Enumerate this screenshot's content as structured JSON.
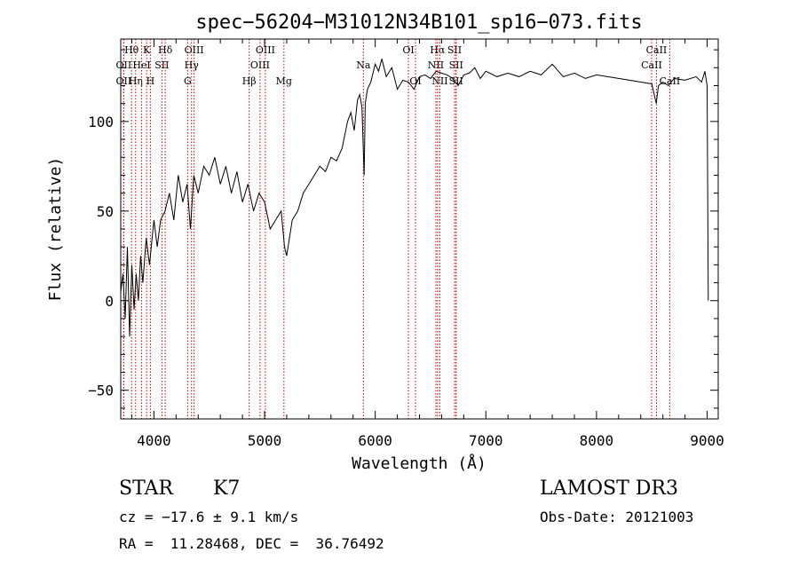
{
  "chart_data": {
    "type": "line",
    "title": "spec−56204−M31012N34B101_sp16−073.fits",
    "xlabel": "Wavelength (Å)",
    "ylabel": "Flux (relative)",
    "xlim": [
      3700,
      9100
    ],
    "ylim": [
      -66,
      146
    ],
    "xticks": [
      4000,
      5000,
      6000,
      7000,
      8000,
      9000
    ],
    "xtick_labels": [
      "4000",
      "5000",
      "6000",
      "7000",
      "8000",
      "9000"
    ],
    "yticks": [
      -50,
      0,
      50,
      100
    ],
    "ytick_labels": [
      "−50",
      "0",
      "50",
      "100"
    ],
    "series": [
      {
        "name": "spectrum",
        "x": [
          3700,
          3720,
          3740,
          3760,
          3780,
          3800,
          3820,
          3840,
          3860,
          3880,
          3900,
          3930,
          3960,
          4000,
          4030,
          4060,
          4100,
          4140,
          4180,
          4220,
          4260,
          4300,
          4330,
          4360,
          4400,
          4450,
          4500,
          4550,
          4600,
          4650,
          4700,
          4750,
          4800,
          4850,
          4900,
          4950,
          5000,
          5050,
          5100,
          5150,
          5180,
          5200,
          5250,
          5300,
          5350,
          5400,
          5450,
          5500,
          5550,
          5600,
          5650,
          5700,
          5750,
          5780,
          5810,
          5840,
          5860,
          5880,
          5900,
          5910,
          5930,
          5960,
          6000,
          6030,
          6060,
          6100,
          6150,
          6200,
          6250,
          6300,
          6350,
          6400,
          6450,
          6500,
          6550,
          6600,
          6650,
          6700,
          6750,
          6800,
          6850,
          6900,
          6950,
          7000,
          7100,
          7200,
          7300,
          7400,
          7500,
          7600,
          7700,
          7800,
          7900,
          8000,
          8100,
          8200,
          8300,
          8400,
          8500,
          8540,
          8560,
          8600,
          8650,
          8700,
          8800,
          8900,
          8950,
          8980,
          9000,
          9010
        ],
        "y": [
          5,
          15,
          -10,
          30,
          -20,
          20,
          -5,
          15,
          0,
          25,
          10,
          35,
          20,
          45,
          30,
          45,
          50,
          60,
          45,
          70,
          55,
          65,
          40,
          70,
          60,
          75,
          70,
          80,
          65,
          75,
          60,
          72,
          55,
          65,
          50,
          60,
          55,
          40,
          45,
          50,
          30,
          25,
          45,
          50,
          60,
          65,
          70,
          75,
          72,
          80,
          78,
          85,
          100,
          105,
          95,
          112,
          115,
          108,
          70,
          110,
          118,
          122,
          132,
          128,
          135,
          125,
          130,
          118,
          123,
          122,
          118,
          125,
          126,
          124,
          128,
          127,
          126,
          124,
          120,
          126,
          127,
          130,
          124,
          128,
          125,
          127,
          125,
          128,
          126,
          132,
          125,
          127,
          124,
          126,
          125,
          124,
          123,
          122,
          121,
          110,
          120,
          122,
          120,
          124,
          123,
          125,
          122,
          128,
          120,
          0
        ]
      }
    ],
    "lines": [
      {
        "name": "Hθ",
        "wave": 3798,
        "row": 0
      },
      {
        "name": "OII",
        "wave": 3727,
        "row": 1
      },
      {
        "name": "OII",
        "wave": 3727,
        "row": 2
      },
      {
        "name": "Hη",
        "wave": 3835,
        "row": 2
      },
      {
        "name": "HeI",
        "wave": 3889,
        "row": 1
      },
      {
        "name": "K",
        "wave": 3934,
        "row": 0
      },
      {
        "name": "H",
        "wave": 3968,
        "row": 2
      },
      {
        "name": "SII",
        "wave": 4072,
        "row": 1
      },
      {
        "name": "Hδ",
        "wave": 4102,
        "row": 0
      },
      {
        "name": "OIII",
        "wave": 4363,
        "row": 0
      },
      {
        "name": "Hγ",
        "wave": 4340,
        "row": 1
      },
      {
        "name": "G",
        "wave": 4305,
        "row": 2
      },
      {
        "name": "Hβ",
        "wave": 4861,
        "row": 2
      },
      {
        "name": "OIII",
        "wave": 5007,
        "row": 0
      },
      {
        "name": "OIII",
        "wave": 4959,
        "row": 1
      },
      {
        "name": "Mg",
        "wave": 5175,
        "row": 2
      },
      {
        "name": "Na",
        "wave": 5893,
        "row": 1
      },
      {
        "name": "OI",
        "wave": 6300,
        "row": 0
      },
      {
        "name": "OI",
        "wave": 6364,
        "row": 2
      },
      {
        "name": "Hα",
        "wave": 6563,
        "row": 0
      },
      {
        "name": "NII",
        "wave": 6548,
        "row": 1
      },
      {
        "name": "NII",
        "wave": 6584,
        "row": 2
      },
      {
        "name": "SII",
        "wave": 6717,
        "row": 0
      },
      {
        "name": "SII",
        "wave": 6731,
        "row": 1
      },
      {
        "name": "SII",
        "wave": 6731,
        "row": 2
      },
      {
        "name": "CaII",
        "wave": 8542,
        "row": 0
      },
      {
        "name": "CaII",
        "wave": 8498,
        "row": 1
      },
      {
        "name": "CaII",
        "wave": 8662,
        "row": 2
      }
    ]
  },
  "info": {
    "object_class": "STAR",
    "subclass": "K7",
    "survey": "LAMOST DR3",
    "cz": "cz = −17.6 ± 9.1 km/s",
    "obs_date": "Obs-Date: 20121003",
    "radec": "RA =  11.28468, DEC =  36.76492"
  },
  "colors": {
    "line_marker": "#cc0000",
    "spectrum": "#000000"
  }
}
